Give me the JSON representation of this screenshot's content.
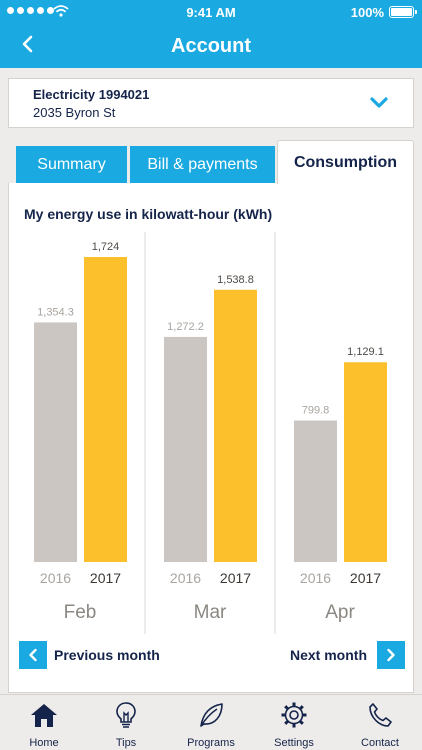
{
  "status_bar": {
    "time": "9:41 AM",
    "battery": "100%"
  },
  "header": {
    "title": "Account"
  },
  "account": {
    "name": "Electricity 1994021",
    "address": "2035 Byron St"
  },
  "tabs": [
    {
      "label": "Summary",
      "active": false
    },
    {
      "label": "Bill & payments",
      "active": false
    },
    {
      "label": "Consumption",
      "active": true
    }
  ],
  "chart_title": "My energy use in kilowatt-hour (kWh)",
  "chart_data": {
    "type": "bar",
    "title": "My energy use in kilowatt-hour (kWh)",
    "categories": [
      "Feb",
      "Mar",
      "Apr"
    ],
    "series": [
      {
        "name": "2016",
        "values": [
          1354.3,
          1272.2,
          799.8
        ],
        "labels": [
          "1,354.3",
          "1,272.2",
          "799.8"
        ],
        "color": "#cbc6c1"
      },
      {
        "name": "2017",
        "values": [
          1724,
          1538.8,
          1129.1
        ],
        "labels": [
          "1,724",
          "1,538.8",
          "1,129.1"
        ],
        "color": "#fcc02c"
      }
    ],
    "ylim": [
      0,
      1724
    ],
    "grid": false
  },
  "nav": {
    "prev_label": "Previous month",
    "next_label": "Next month"
  },
  "tabbar": [
    {
      "label": "Home",
      "icon": "home-icon",
      "active": true
    },
    {
      "label": "Tips",
      "icon": "lightbulb-icon",
      "active": false
    },
    {
      "label": "Programs",
      "icon": "leaf-icon",
      "active": false
    },
    {
      "label": "Settings",
      "icon": "gear-icon",
      "active": false
    },
    {
      "label": "Contact",
      "icon": "phone-icon",
      "active": false
    }
  ],
  "colors": {
    "brand_blue": "#1aa9e0",
    "navy": "#15244a",
    "bar_2016": "#cbc6c1",
    "bar_2017": "#fcc02c"
  }
}
